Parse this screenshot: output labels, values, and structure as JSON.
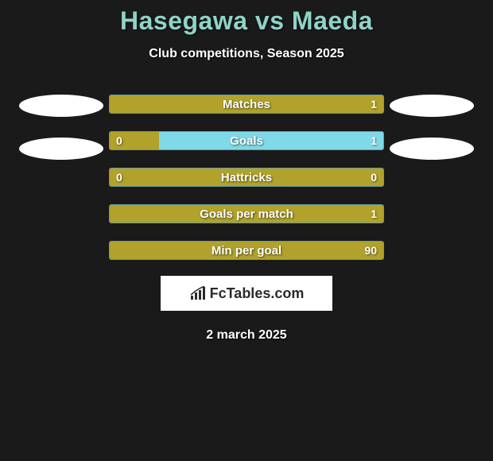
{
  "title": "Hasegawa vs Maeda",
  "subtitle": "Club competitions, Season 2025",
  "date": "2 march 2025",
  "logo_text": "FcTables.com",
  "colors": {
    "background": "#1a1a1a",
    "title_color": "#8fd4c8",
    "bar_border": "#6a9c9c",
    "olive": "#b0a22a",
    "cyan": "#7fd9e8",
    "text": "#ffffff",
    "ellipse": "#ffffff",
    "logo_bg": "#ffffff",
    "logo_text": "#2a2a2a"
  },
  "stats": [
    {
      "label": "Matches",
      "left_val": "",
      "right_val": "1",
      "left_width_pct": 0,
      "right_width_pct": 100,
      "left_color": "#b0a22a",
      "right_color": "#b0a22a"
    },
    {
      "label": "Goals",
      "left_val": "0",
      "right_val": "1",
      "left_width_pct": 18,
      "right_width_pct": 82,
      "left_color": "#b0a22a",
      "right_color": "#7fd9e8"
    },
    {
      "label": "Hattricks",
      "left_val": "0",
      "right_val": "0",
      "left_width_pct": 100,
      "right_width_pct": 0,
      "left_color": "#b0a22a",
      "right_color": "#7fd9e8"
    },
    {
      "label": "Goals per match",
      "left_val": "",
      "right_val": "1",
      "left_width_pct": 0,
      "right_width_pct": 100,
      "left_color": "#b0a22a",
      "right_color": "#b0a22a"
    },
    {
      "label": "Min per goal",
      "left_val": "",
      "right_val": "90",
      "left_width_pct": 0,
      "right_width_pct": 100,
      "left_color": "#b0a22a",
      "right_color": "#b0a22a"
    }
  ],
  "left_ellipses_count": 2,
  "right_ellipses_count": 2
}
